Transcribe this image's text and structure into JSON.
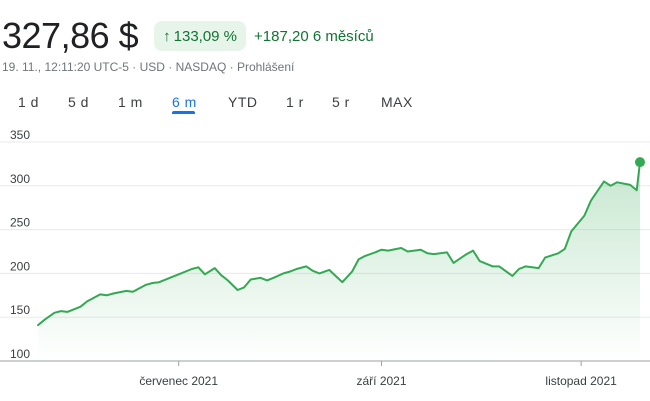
{
  "header": {
    "price": "327,86 $",
    "pct_change": "133,09 %",
    "abs_change": "+187,20 6 měsíců",
    "arrow_icon": "arrow-up-icon",
    "up_color": "#137333",
    "badge_bg": "#e6f4ea"
  },
  "meta": {
    "text": "19. 11., 12:11:20 UTC-5 · USD · NASDAQ · Prohlášení"
  },
  "tabs": {
    "selected": "6 m",
    "accent_color": "#1a73e8",
    "items": [
      {
        "label": "1 d"
      },
      {
        "label": "5 d"
      },
      {
        "label": "1 m"
      },
      {
        "label": "6 m"
      },
      {
        "label": "YTD"
      },
      {
        "label": "1 r"
      },
      {
        "label": "5 r"
      },
      {
        "label": "MAX"
      }
    ]
  },
  "chart_data": {
    "type": "area",
    "title": "",
    "xlabel": "",
    "ylabel": "",
    "ylim": [
      100,
      350
    ],
    "yticks": [
      100,
      150,
      200,
      250,
      300,
      350
    ],
    "ytick_labels": [
      "100",
      "150",
      "200",
      "250",
      "300",
      "350"
    ],
    "grid": true,
    "line_color": "#34a853",
    "x_start": "2021-05-19",
    "x_end": "2021-11-19",
    "xtick_labels": [
      {
        "label": "červenec 2021",
        "date": "2021-07-01"
      },
      {
        "label": "září 2021",
        "date": "2021-09-01"
      },
      {
        "label": "listopad 2021",
        "date": "2021-11-01"
      }
    ],
    "series": [
      {
        "x": [
          "2021-05-19",
          "2021-05-21",
          "2021-05-24",
          "2021-05-26",
          "2021-05-28",
          "2021-06-01",
          "2021-06-03",
          "2021-06-07",
          "2021-06-09",
          "2021-06-11",
          "2021-06-15",
          "2021-06-17",
          "2021-06-21",
          "2021-06-23",
          "2021-06-25",
          "2021-06-29",
          "2021-07-01",
          "2021-07-05",
          "2021-07-07",
          "2021-07-09",
          "2021-07-12",
          "2021-07-14",
          "2021-07-16",
          "2021-07-19",
          "2021-07-21",
          "2021-07-23",
          "2021-07-26",
          "2021-07-28",
          "2021-07-30",
          "2021-08-02",
          "2021-08-04",
          "2021-08-06",
          "2021-08-09",
          "2021-08-11",
          "2021-08-13",
          "2021-08-16",
          "2021-08-18",
          "2021-08-20",
          "2021-08-23",
          "2021-08-25",
          "2021-08-27",
          "2021-08-30",
          "2021-09-01",
          "2021-09-03",
          "2021-09-07",
          "2021-09-09",
          "2021-09-13",
          "2021-09-15",
          "2021-09-17",
          "2021-09-21",
          "2021-09-23",
          "2021-09-27",
          "2021-09-29",
          "2021-10-01",
          "2021-10-05",
          "2021-10-07",
          "2021-10-11",
          "2021-10-13",
          "2021-10-15",
          "2021-10-19",
          "2021-10-21",
          "2021-10-25",
          "2021-10-27",
          "2021-10-29",
          "2021-11-02",
          "2021-11-04",
          "2021-11-08",
          "2021-11-10",
          "2021-11-12",
          "2021-11-16",
          "2021-11-18",
          "2021-11-19"
        ],
        "values": [
          141,
          147,
          155,
          157,
          156,
          162,
          168,
          176,
          175,
          177,
          180,
          179,
          187,
          189,
          190,
          196,
          199,
          205,
          207,
          199,
          206,
          198,
          192,
          181,
          184,
          193,
          195,
          192,
          195,
          200,
          202,
          205,
          208,
          203,
          200,
          204,
          197,
          190,
          202,
          216,
          220,
          224,
          227,
          226,
          229,
          225,
          227,
          223,
          222,
          224,
          212,
          222,
          226,
          214,
          208,
          208,
          197,
          205,
          208,
          206,
          218,
          223,
          228,
          248,
          266,
          283,
          305,
          300,
          304,
          301,
          295,
          327
        ]
      }
    ]
  }
}
